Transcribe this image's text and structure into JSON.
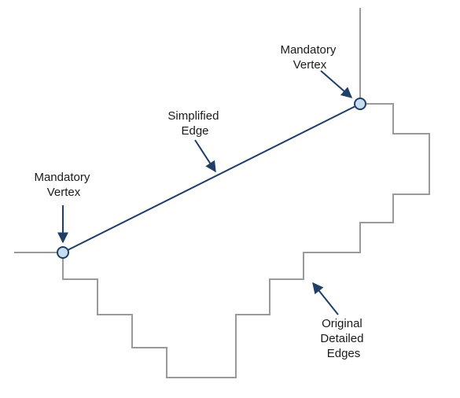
{
  "labels": {
    "mandatory_vertex_left": [
      "Mandatory",
      "Vertex"
    ],
    "mandatory_vertex_right": [
      "Mandatory",
      "Vertex"
    ],
    "simplified_edge": [
      "Simplified",
      "Edge"
    ],
    "original_edges": [
      "Original",
      "Detailed",
      "Edges"
    ]
  },
  "colors": {
    "detailed_edge": "#9a9a9a",
    "simplified_edge": "#1f3f66",
    "vertex_fill": "#c8ddf2",
    "text": "#1a1a1a"
  }
}
